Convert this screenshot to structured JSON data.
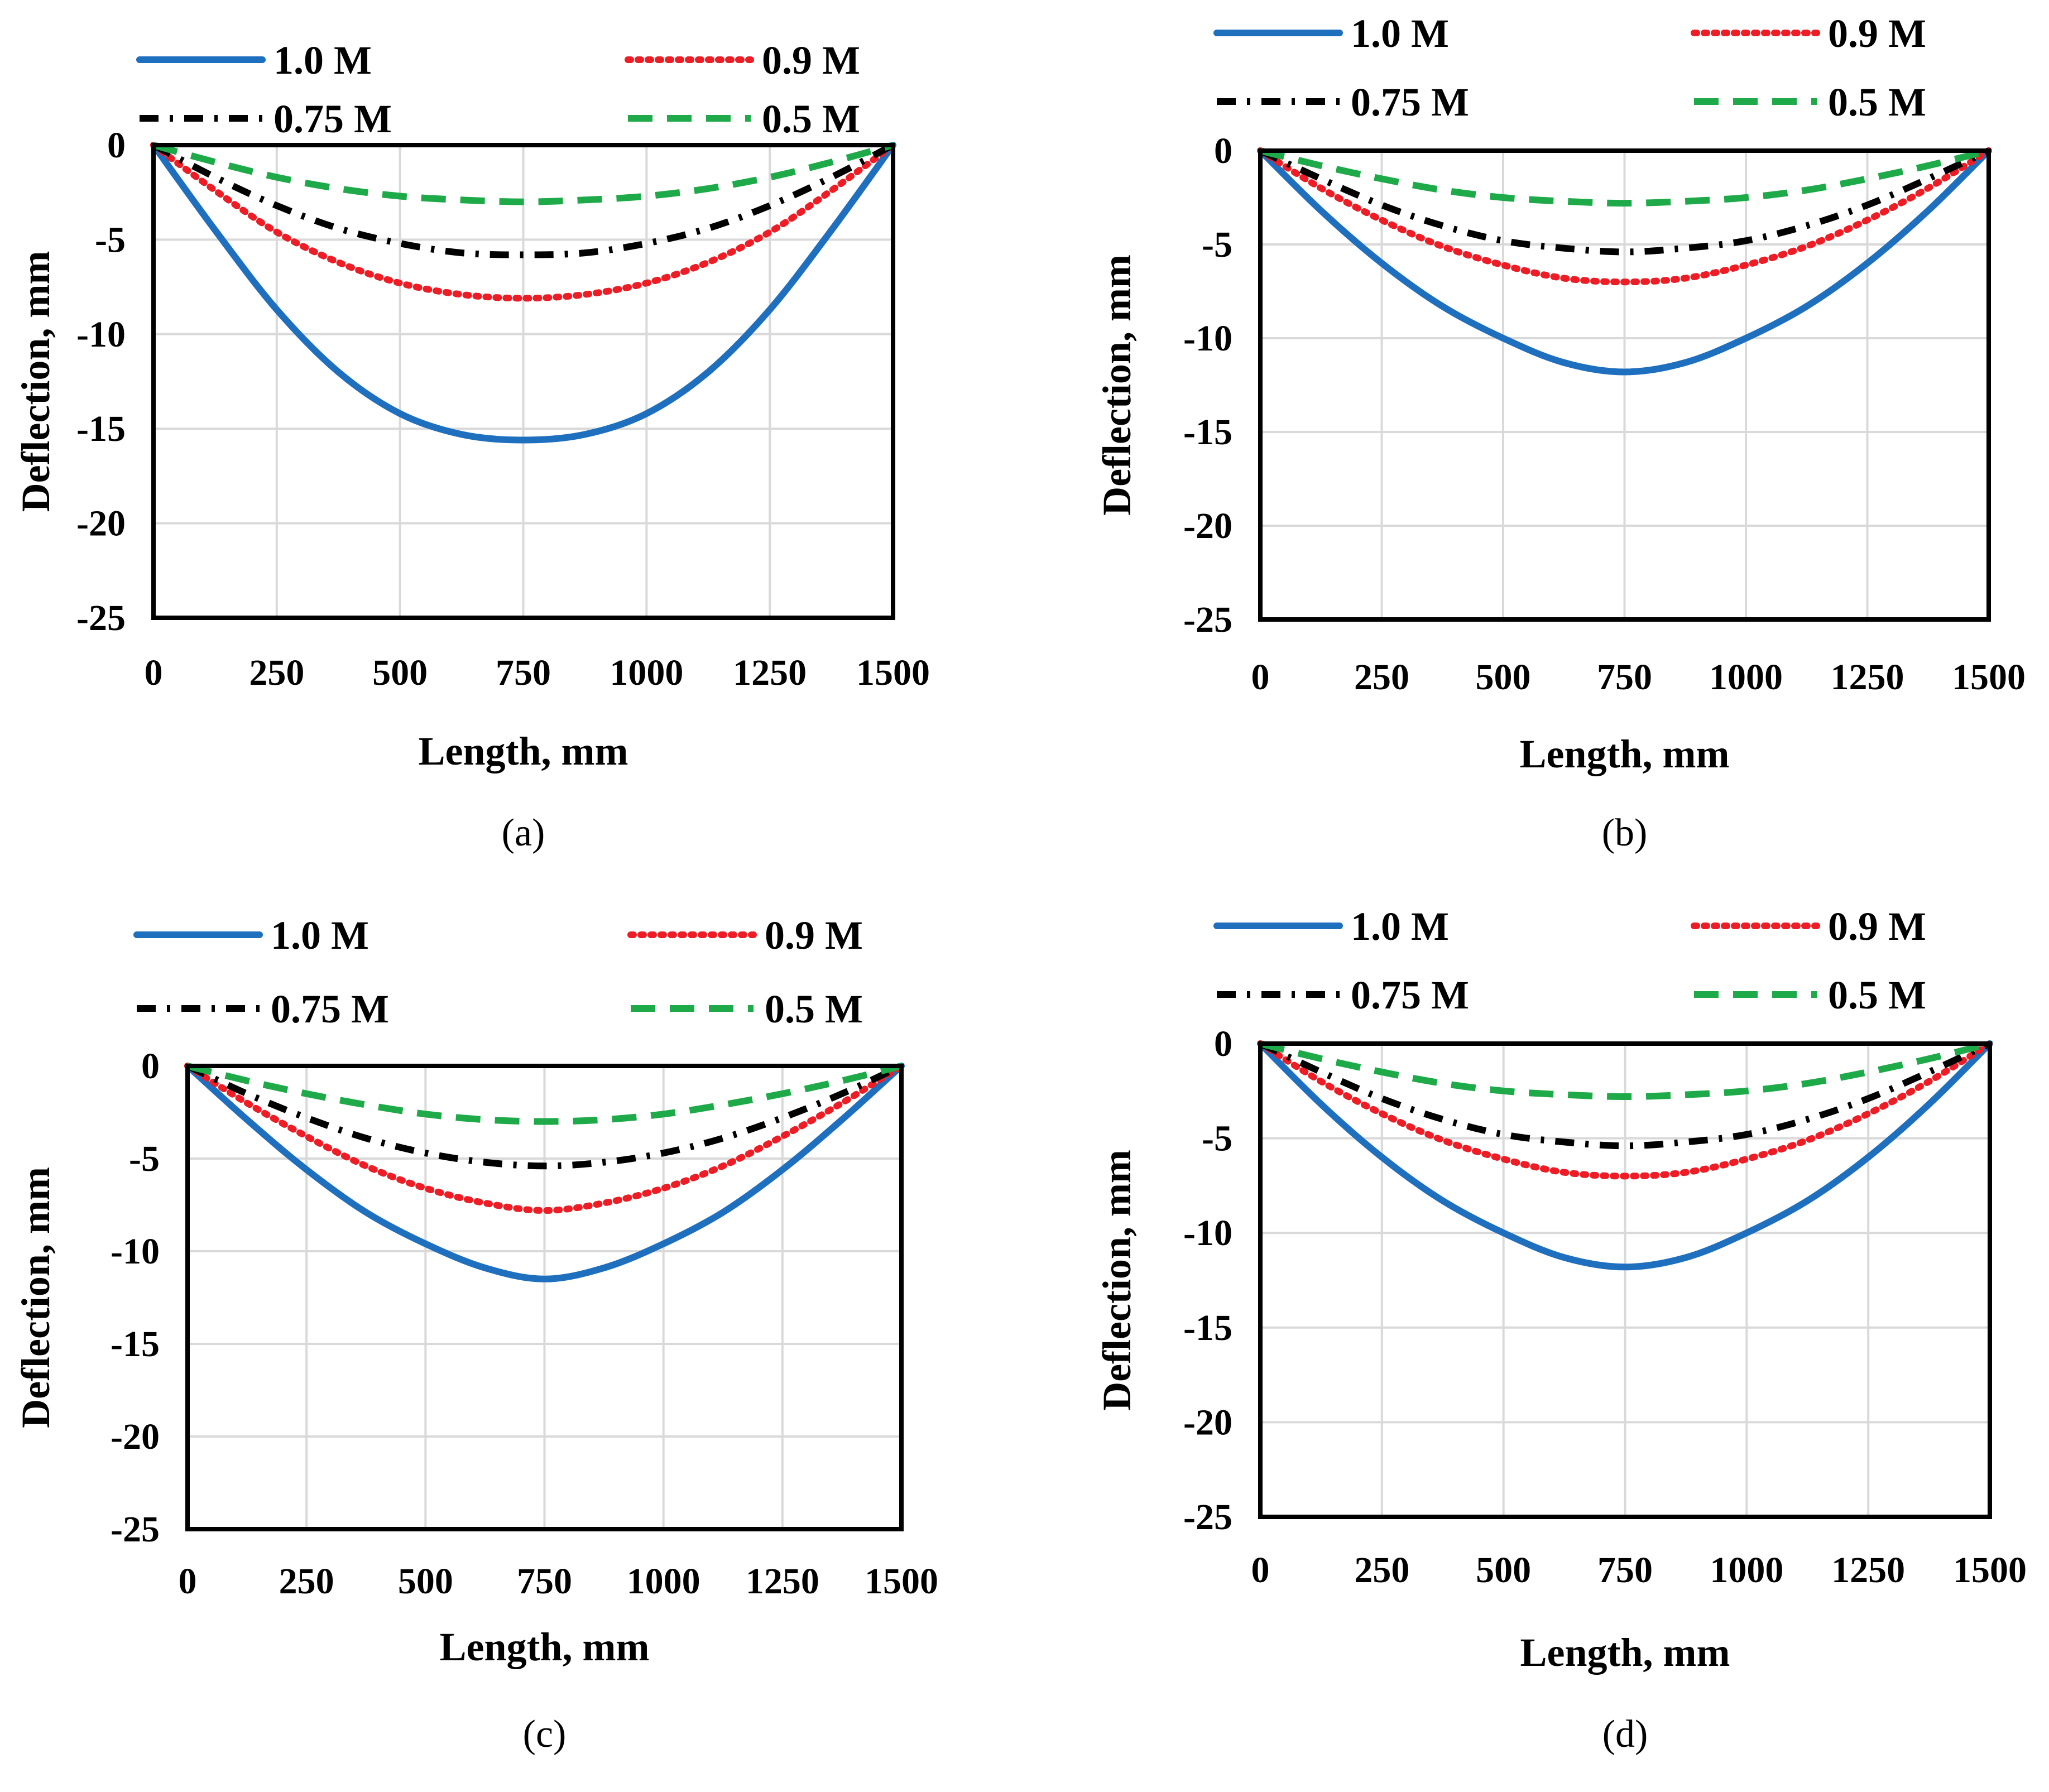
{
  "figure": {
    "panels": [
      "a",
      "b",
      "c",
      "d"
    ]
  },
  "chart_data": [
    {
      "type": "line",
      "panel_label": "(a)",
      "xlabel": "Length, mm",
      "ylabel": "Deflection, mm",
      "xlim": [
        0,
        1500
      ],
      "ylim": [
        -25,
        0
      ],
      "x_ticks": [
        0,
        250,
        500,
        750,
        1000,
        1250,
        1500
      ],
      "y_ticks": [
        0,
        -5,
        -10,
        -15,
        -20,
        -25
      ],
      "x_tick_labels": [
        "0",
        "250",
        "500",
        "750",
        "1000",
        "1250",
        "1500"
      ],
      "y_tick_labels": [
        "0",
        "-5",
        "-10",
        "-15",
        "-20",
        "-25"
      ],
      "grid": true,
      "legend_position": "top",
      "x": [
        0,
        125,
        250,
        375,
        500,
        625,
        750,
        875,
        1000,
        1125,
        1250,
        1375,
        1500
      ],
      "series": [
        {
          "name": "1.0 M",
          "color": "#1f6fbf",
          "style": "solid",
          "values": [
            0,
            -4.5,
            -8.7,
            -12.0,
            -14.2,
            -15.3,
            -15.6,
            -15.3,
            -14.2,
            -12.0,
            -8.7,
            -4.5,
            0
          ]
        },
        {
          "name": "0.9 M",
          "color": "#ee1c25",
          "style": "dotted",
          "values": [
            0,
            -2.4,
            -4.6,
            -6.2,
            -7.3,
            -7.9,
            -8.1,
            -7.9,
            -7.3,
            -6.2,
            -4.6,
            -2.4,
            0
          ]
        },
        {
          "name": "0.75 M",
          "color": "#000000",
          "style": "dashdot",
          "values": [
            0,
            -1.7,
            -3.2,
            -4.4,
            -5.2,
            -5.7,
            -5.8,
            -5.7,
            -5.2,
            -4.4,
            -3.2,
            -1.7,
            0
          ]
        },
        {
          "name": "0.5 M",
          "color": "#1faa4a",
          "style": "dashed",
          "values": [
            0,
            -0.9,
            -1.7,
            -2.3,
            -2.7,
            -2.9,
            -3.0,
            -2.9,
            -2.7,
            -2.3,
            -1.7,
            -0.9,
            0
          ]
        }
      ]
    },
    {
      "type": "line",
      "panel_label": "(b)",
      "xlabel": "Length, mm",
      "ylabel": "Deflection, mm",
      "xlim": [
        0,
        1500
      ],
      "ylim": [
        -25,
        0
      ],
      "x_ticks": [
        0,
        250,
        500,
        750,
        1000,
        1250,
        1500
      ],
      "y_ticks": [
        0,
        -5,
        -10,
        -15,
        -20,
        -25
      ],
      "x_tick_labels": [
        "0",
        "250",
        "500",
        "750",
        "1000",
        "1250",
        "1500"
      ],
      "y_tick_labels": [
        "0",
        "-5",
        "-10",
        "-15",
        "-20",
        "-25"
      ],
      "grid": true,
      "legend_position": "top",
      "x": [
        0,
        125,
        250,
        375,
        500,
        625,
        750,
        875,
        1000,
        1125,
        1250,
        1375,
        1500
      ],
      "series": [
        {
          "name": "1.0 M",
          "color": "#1f6fbf",
          "style": "solid",
          "values": [
            0,
            -3.2,
            -6.0,
            -8.3,
            -10.0,
            -11.3,
            -11.8,
            -11.3,
            -10.0,
            -8.3,
            -6.0,
            -3.2,
            0
          ]
        },
        {
          "name": "0.9 M",
          "color": "#ee1c25",
          "style": "dotted",
          "values": [
            0,
            -2.0,
            -3.7,
            -5.1,
            -6.1,
            -6.8,
            -7.0,
            -6.8,
            -6.1,
            -5.1,
            -3.7,
            -2.0,
            0
          ]
        },
        {
          "name": "0.75 M",
          "color": "#000000",
          "style": "dashdot",
          "values": [
            0,
            -1.5,
            -2.9,
            -4.0,
            -4.8,
            -5.2,
            -5.4,
            -5.2,
            -4.8,
            -4.0,
            -2.9,
            -1.5,
            0
          ]
        },
        {
          "name": "0.5 M",
          "color": "#1faa4a",
          "style": "dashed",
          "values": [
            0,
            -0.8,
            -1.5,
            -2.1,
            -2.5,
            -2.7,
            -2.8,
            -2.7,
            -2.5,
            -2.1,
            -1.5,
            -0.8,
            0
          ]
        }
      ]
    },
    {
      "type": "line",
      "panel_label": "(c)",
      "xlabel": "Length, mm",
      "ylabel": "Deflection, mm",
      "xlim": [
        0,
        1500
      ],
      "ylim": [
        -25,
        0
      ],
      "x_ticks": [
        0,
        250,
        500,
        750,
        1000,
        1250,
        1500
      ],
      "y_ticks": [
        0,
        -5,
        -10,
        -15,
        -20,
        -25
      ],
      "x_tick_labels": [
        "0",
        "250",
        "500",
        "750",
        "1000",
        "1250",
        "1500"
      ],
      "y_tick_labels": [
        "0",
        "-5",
        "-10",
        "-15",
        "-20",
        "-25"
      ],
      "grid": true,
      "legend_position": "top",
      "x": [
        0,
        125,
        250,
        375,
        500,
        625,
        750,
        875,
        1000,
        1125,
        1250,
        1375,
        1500
      ],
      "series": [
        {
          "name": "1.0 M",
          "color": "#1f6fbf",
          "style": "solid",
          "values": [
            0,
            -2.9,
            -5.6,
            -7.9,
            -9.6,
            -10.9,
            -11.5,
            -10.9,
            -9.6,
            -7.9,
            -5.6,
            -2.9,
            0
          ]
        },
        {
          "name": "0.9 M",
          "color": "#ee1c25",
          "style": "dotted",
          "values": [
            0,
            -2.0,
            -3.8,
            -5.4,
            -6.6,
            -7.4,
            -7.8,
            -7.4,
            -6.6,
            -5.4,
            -3.8,
            -2.0,
            0
          ]
        },
        {
          "name": "0.75 M",
          "color": "#000000",
          "style": "dashdot",
          "values": [
            0,
            -1.5,
            -2.8,
            -3.9,
            -4.7,
            -5.2,
            -5.4,
            -5.2,
            -4.7,
            -3.9,
            -2.8,
            -1.5,
            0
          ]
        },
        {
          "name": "0.5 M",
          "color": "#1faa4a",
          "style": "dashed",
          "values": [
            0,
            -0.8,
            -1.5,
            -2.1,
            -2.6,
            -2.9,
            -3.0,
            -2.9,
            -2.6,
            -2.1,
            -1.5,
            -0.8,
            0
          ]
        }
      ]
    },
    {
      "type": "line",
      "panel_label": "(d)",
      "xlabel": "Length, mm",
      "ylabel": "Deflection, mm",
      "xlim": [
        0,
        1500
      ],
      "ylim": [
        -25,
        0
      ],
      "x_ticks": [
        0,
        250,
        500,
        750,
        1000,
        1250,
        1500
      ],
      "y_ticks": [
        0,
        -5,
        -10,
        -15,
        -20,
        -25
      ],
      "x_tick_labels": [
        "0",
        "250",
        "500",
        "750",
        "1000",
        "1250",
        "1500"
      ],
      "y_tick_labels": [
        "0",
        "-5",
        "-10",
        "-15",
        "-20",
        "-25"
      ],
      "grid": true,
      "legend_position": "top",
      "x": [
        0,
        125,
        250,
        375,
        500,
        625,
        750,
        875,
        1000,
        1125,
        1250,
        1375,
        1500
      ],
      "series": [
        {
          "name": "1.0 M",
          "color": "#1f6fbf",
          "style": "solid",
          "values": [
            0,
            -3.2,
            -6.0,
            -8.3,
            -10.0,
            -11.3,
            -11.8,
            -11.3,
            -10.0,
            -8.3,
            -6.0,
            -3.2,
            0
          ]
        },
        {
          "name": "0.9 M",
          "color": "#ee1c25",
          "style": "dotted",
          "values": [
            0,
            -2.0,
            -3.7,
            -5.1,
            -6.1,
            -6.8,
            -7.0,
            -6.8,
            -6.1,
            -5.1,
            -3.7,
            -2.0,
            0
          ]
        },
        {
          "name": "0.75 M",
          "color": "#000000",
          "style": "dashdot",
          "values": [
            0,
            -1.5,
            -2.9,
            -4.0,
            -4.8,
            -5.2,
            -5.4,
            -5.2,
            -4.8,
            -4.0,
            -2.9,
            -1.5,
            0
          ]
        },
        {
          "name": "0.5 M",
          "color": "#1faa4a",
          "style": "dashed",
          "values": [
            0,
            -0.8,
            -1.5,
            -2.1,
            -2.5,
            -2.7,
            -2.8,
            -2.7,
            -2.5,
            -2.1,
            -1.5,
            -0.8,
            0
          ]
        }
      ]
    }
  ]
}
